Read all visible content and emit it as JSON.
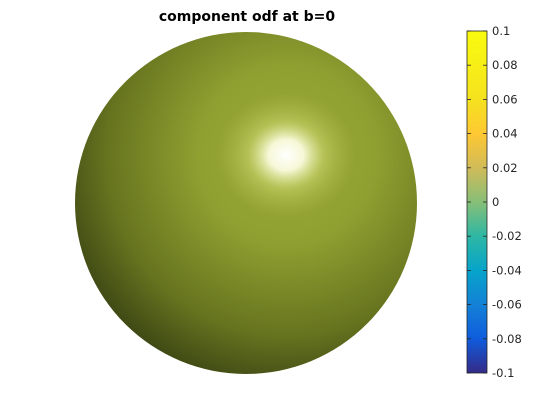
{
  "chart_data": {
    "type": "surface",
    "title": "component odf at b=0",
    "shape": "sphere",
    "value": 0.04,
    "surface_color": "#97a634",
    "lighting": "specular highlight upper-right",
    "colorbar": {
      "location": "right",
      "colormap": "parula",
      "limits": [
        -0.1,
        0.1
      ],
      "ticks": [
        0.1,
        0.08,
        0.06,
        0.04,
        0.02,
        0,
        -0.02,
        -0.04,
        -0.06,
        -0.08,
        -0.1
      ],
      "tick_labels": [
        "0.1",
        "0.08",
        "0.06",
        "0.04",
        "0.02",
        "0",
        "-0.02",
        "-0.04",
        "-0.06",
        "-0.08",
        "-0.1"
      ]
    },
    "axes_visible": false
  }
}
